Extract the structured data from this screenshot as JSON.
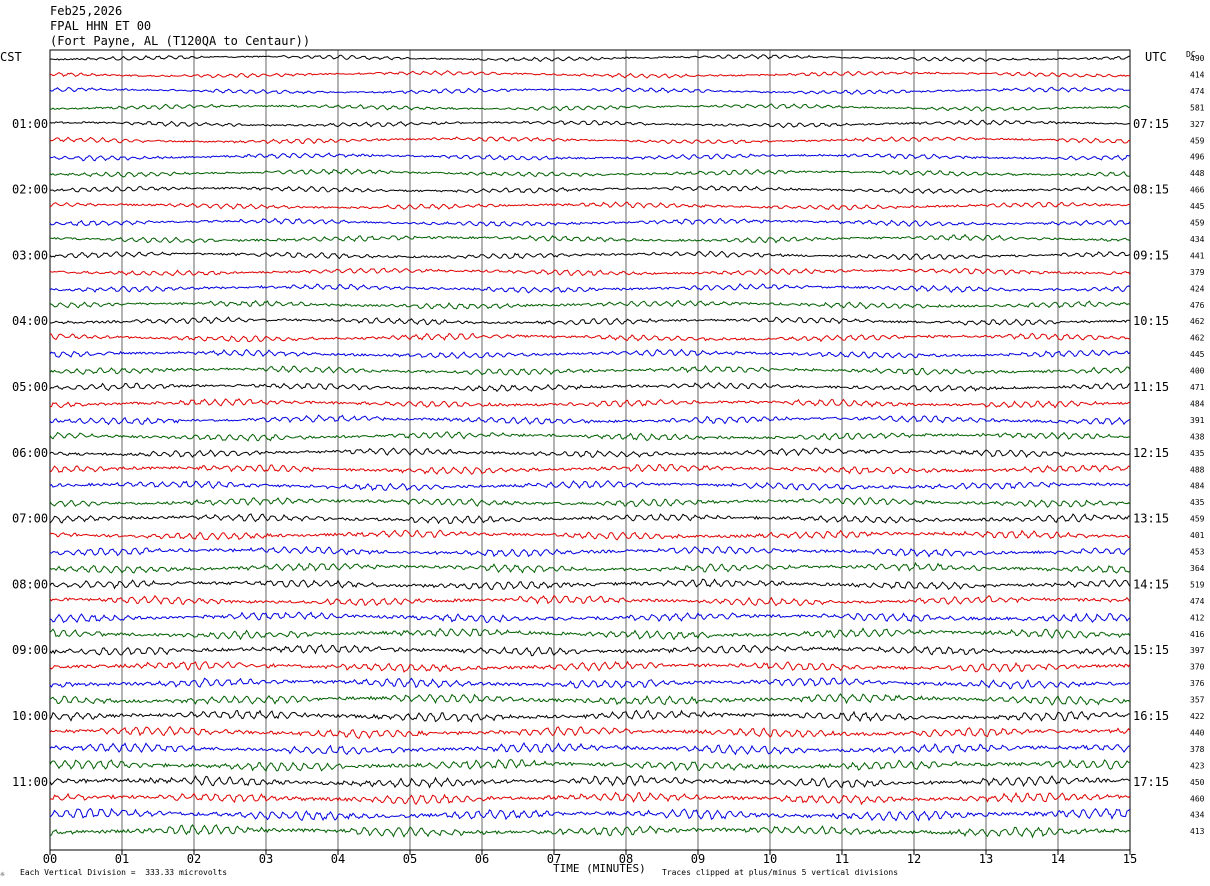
{
  "header": {
    "date": "Feb25,2026",
    "station": "FPAL HHN ET 00",
    "location": "(Fort Payne, AL (T120QA to Centaur))"
  },
  "left_zone_label": "CST",
  "right_zone_label": "UTC",
  "dc_label": "DC",
  "footer": {
    "scale_note": "Each Vertical Division =  333.33 microvolts",
    "xlabel": "TIME (MINUTES)",
    "clip_note": "Traces clipped at plus/minus 5 vertical divisions",
    "corner_mark": "☼"
  },
  "colors": {
    "trace_cycle": [
      "#000000",
      "#e00000",
      "#0000e0",
      "#006000"
    ],
    "grid": "#000000"
  },
  "chart_data": {
    "type": "line",
    "title": "FPAL HHN ET 00",
    "xlabel": "TIME (MINUTES)",
    "x_ticks": [
      "00",
      "01",
      "02",
      "03",
      "04",
      "05",
      "06",
      "07",
      "08",
      "09",
      "10",
      "11",
      "12",
      "13",
      "14",
      "15"
    ],
    "xlim": [
      0,
      15
    ],
    "trace_count": 48,
    "left_hour_labels": [
      "01:00",
      "02:00",
      "03:00",
      "04:00",
      "05:00",
      "06:00",
      "07:00",
      "08:00",
      "09:00",
      "10:00",
      "11:00"
    ],
    "right_hour_labels": [
      "07:15",
      "08:15",
      "09:15",
      "10:15",
      "11:15",
      "12:15",
      "13:15",
      "14:15",
      "15:15",
      "16:15",
      "17:15"
    ],
    "hour_label_trace_index": [
      4,
      8,
      12,
      16,
      20,
      24,
      28,
      32,
      36,
      40,
      44
    ],
    "dc_offsets": [
      490,
      414,
      474,
      581,
      327,
      459,
      496,
      448,
      466,
      445,
      459,
      434,
      441,
      379,
      424,
      476,
      462,
      462,
      445,
      400,
      471,
      484,
      391,
      438,
      435,
      488,
      484,
      435,
      459,
      401,
      453,
      364,
      519,
      474,
      412,
      416,
      397,
      370,
      376,
      357,
      422,
      440,
      378,
      423,
      450,
      460,
      434,
      413
    ]
  }
}
